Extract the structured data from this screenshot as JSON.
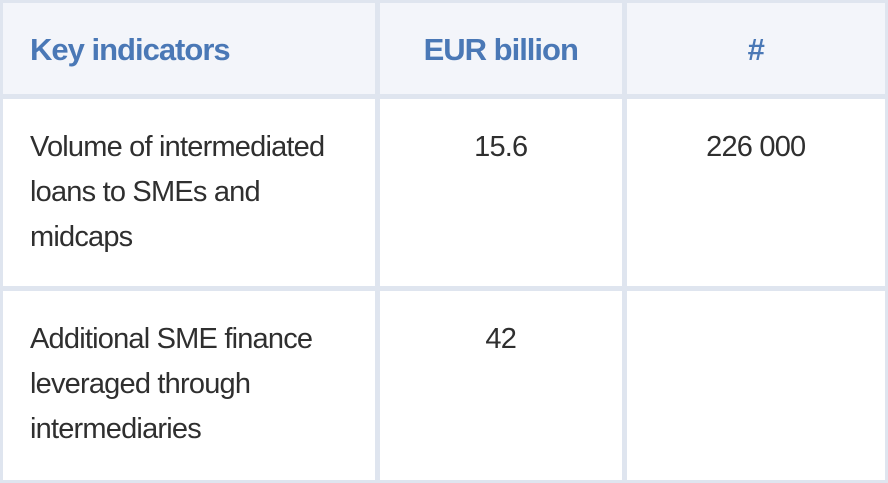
{
  "table": {
    "header": [
      "Key indicators",
      "EUR billion",
      "#"
    ],
    "rows": [
      [
        "Volume of intermediated loans to SMEs and midcaps",
        "15.6",
        "226 000"
      ],
      [
        "Additional SME finance leveraged through intermediaries",
        "42"
      ]
    ]
  }
}
